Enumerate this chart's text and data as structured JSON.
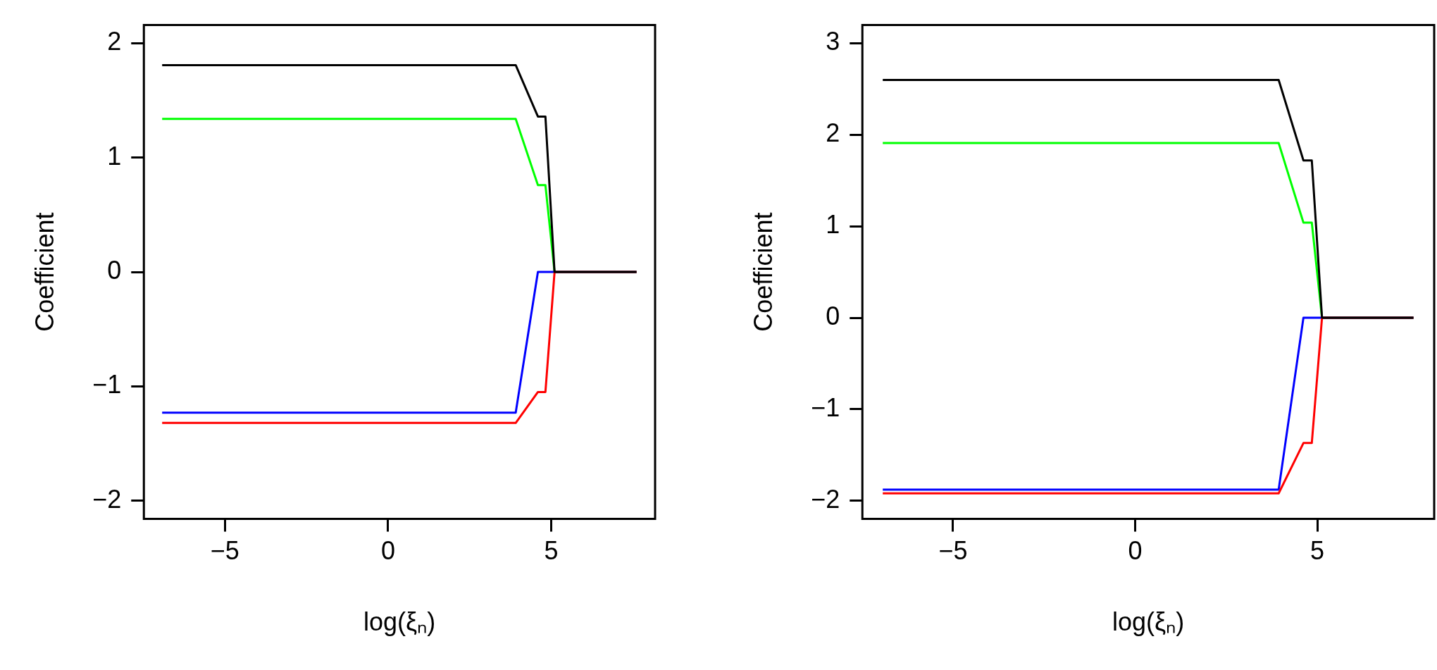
{
  "chart_data": [
    {
      "type": "line",
      "xlabel": "log(ξₙ)",
      "ylabel": "Coefficient",
      "x": [
        -6.92,
        3.91,
        4.59,
        4.82,
        5.1,
        7.61
      ],
      "xlim": [
        -7.48,
        8.18
      ],
      "ylim": [
        -2.16,
        2.16
      ],
      "xticks": [
        -5,
        0,
        5
      ],
      "yticks": [
        -2,
        -1,
        0,
        1,
        2
      ],
      "series": [
        {
          "color": "#000000",
          "values": [
            1.81,
            1.81,
            1.36,
            1.36,
            0,
            0
          ]
        },
        {
          "color": "#ff0000",
          "values": [
            -1.32,
            -1.32,
            -1.05,
            -1.05,
            0,
            0
          ]
        },
        {
          "color": "#0000ff",
          "values": [
            -1.23,
            -1.23,
            0,
            0,
            0,
            0
          ]
        },
        {
          "color": "#00ff00",
          "values": [
            1.34,
            1.34,
            0.76,
            0.76,
            0,
            0
          ]
        }
      ]
    },
    {
      "type": "line",
      "xlabel": "log(ξₙ)",
      "ylabel": "Coefficient",
      "x": [
        -6.93,
        3.94,
        4.62,
        4.85,
        5.13,
        7.64
      ],
      "xlim": [
        -7.49,
        8.21
      ],
      "ylim": [
        -2.2,
        3.2
      ],
      "xticks": [
        -5,
        0,
        5
      ],
      "yticks": [
        -2,
        -1,
        0,
        1,
        2,
        3
      ],
      "series": [
        {
          "color": "#000000",
          "values": [
            2.6,
            2.6,
            1.72,
            1.72,
            0,
            0
          ]
        },
        {
          "color": "#ff0000",
          "values": [
            -1.92,
            -1.92,
            -1.37,
            -1.37,
            0,
            0
          ]
        },
        {
          "color": "#0000ff",
          "values": [
            -1.88,
            -1.88,
            0,
            0,
            0,
            0
          ]
        },
        {
          "color": "#00ff00",
          "values": [
            1.91,
            1.91,
            1.04,
            1.04,
            0,
            0
          ]
        }
      ]
    }
  ]
}
